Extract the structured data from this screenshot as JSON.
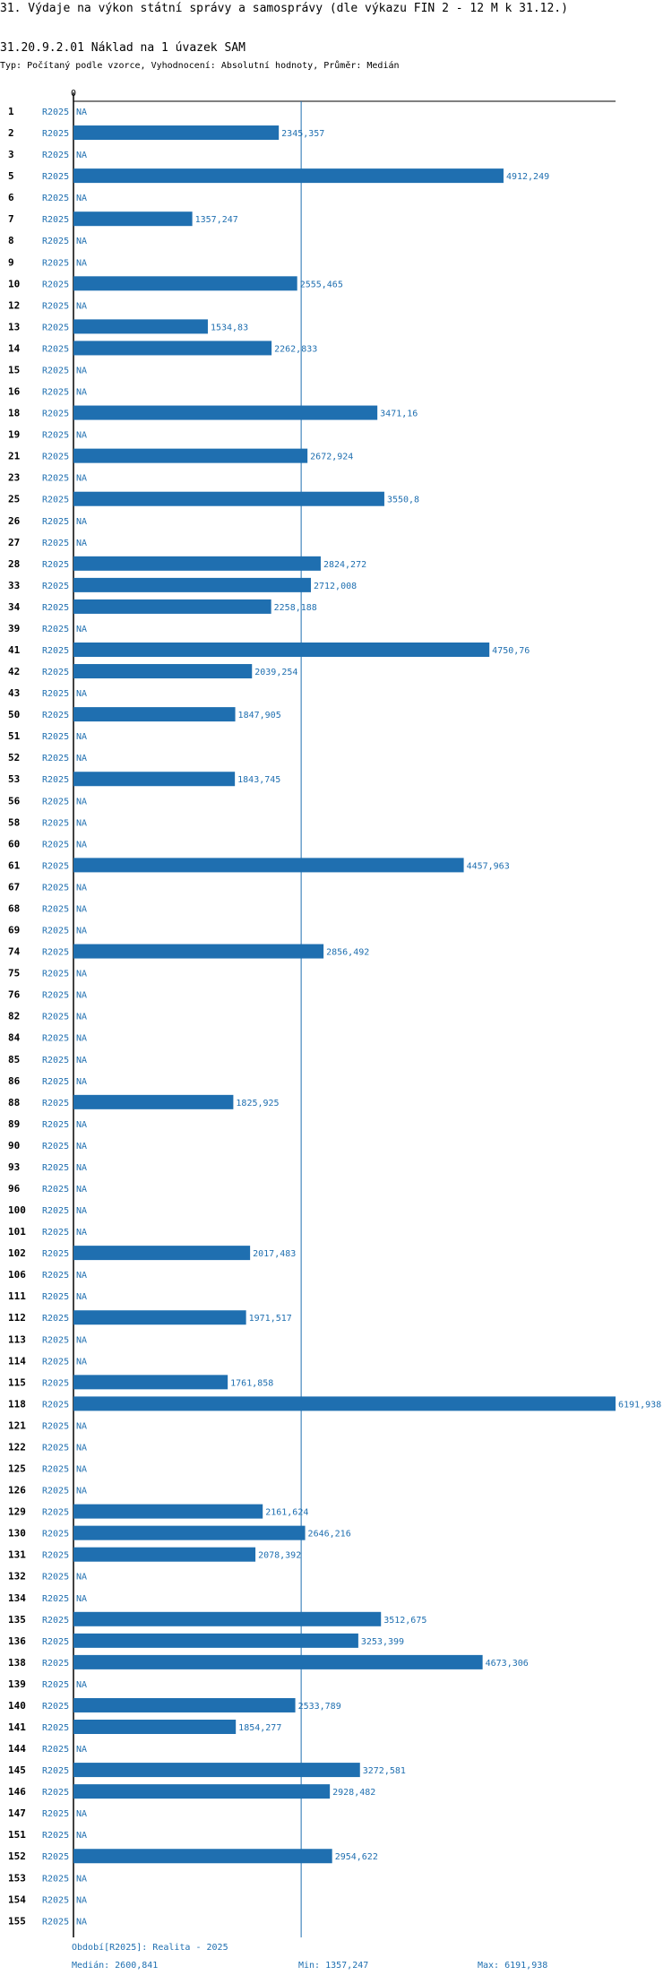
{
  "header": {
    "title": "31. Výdaje na výkon státní správy a samosprávy (dle výkazu FIN 2 - 12 M k 31.12.)",
    "subtitle": "31.20.9.2.01 Náklad na 1 úvazek SAM",
    "type_line": "Typ: Počítaný podle vzorce, Vyhodnocení: Absolutní hodnoty, Průměr: Medián"
  },
  "colors": {
    "bar": "#1f6fb0",
    "text": "#1f6fb0",
    "axis": "#000000"
  },
  "chart_data": {
    "type": "bar",
    "orientation": "horizontal",
    "series_label": "R2025",
    "na_label": "NA",
    "axis_zero_label": "0",
    "xlim": [
      0,
      6191.938
    ],
    "median": 2600.841,
    "categories": [
      "1",
      "2",
      "3",
      "5",
      "6",
      "7",
      "8",
      "9",
      "10",
      "12",
      "13",
      "14",
      "15",
      "16",
      "18",
      "19",
      "21",
      "23",
      "25",
      "26",
      "27",
      "28",
      "33",
      "34",
      "39",
      "41",
      "42",
      "43",
      "50",
      "51",
      "52",
      "53",
      "56",
      "58",
      "60",
      "61",
      "67",
      "68",
      "69",
      "74",
      "75",
      "76",
      "82",
      "84",
      "85",
      "86",
      "88",
      "89",
      "90",
      "93",
      "96",
      "100",
      "101",
      "102",
      "106",
      "111",
      "112",
      "113",
      "114",
      "115",
      "118",
      "121",
      "122",
      "125",
      "126",
      "129",
      "130",
      "131",
      "132",
      "134",
      "135",
      "136",
      "138",
      "139",
      "140",
      "141",
      "144",
      "145",
      "146",
      "147",
      "151",
      "152",
      "153",
      "154",
      "155"
    ],
    "values": [
      null,
      2345.357,
      null,
      4912.249,
      null,
      1357.247,
      null,
      null,
      2555.465,
      null,
      1534.83,
      2262.833,
      null,
      null,
      3471.16,
      null,
      2672.924,
      null,
      3550.8,
      null,
      null,
      2824.272,
      2712.008,
      2258.188,
      null,
      4750.76,
      2039.254,
      null,
      1847.905,
      null,
      null,
      1843.745,
      null,
      null,
      null,
      4457.963,
      null,
      null,
      null,
      2856.492,
      null,
      null,
      null,
      null,
      null,
      null,
      1825.925,
      null,
      null,
      null,
      null,
      null,
      null,
      2017.483,
      null,
      null,
      1971.517,
      null,
      null,
      1761.858,
      6191.938,
      null,
      null,
      null,
      null,
      2161.624,
      2646.216,
      2078.392,
      null,
      null,
      3512.675,
      3253.399,
      4673.306,
      null,
      2533.789,
      1854.277,
      null,
      3272.581,
      2928.482,
      null,
      null,
      2954.622,
      null,
      null,
      null
    ],
    "value_labels": [
      "NA",
      "2345,357",
      "NA",
      "4912,249",
      "NA",
      "1357,247",
      "NA",
      "NA",
      "2555,465",
      "NA",
      "1534,83",
      "2262,833",
      "NA",
      "NA",
      "3471,16",
      "NA",
      "2672,924",
      "NA",
      "3550,8",
      "NA",
      "NA",
      "2824,272",
      "2712,008",
      "2258,188",
      "NA",
      "4750,76",
      "2039,254",
      "NA",
      "1847,905",
      "NA",
      "NA",
      "1843,745",
      "NA",
      "NA",
      "NA",
      "4457,963",
      "NA",
      "NA",
      "NA",
      "2856,492",
      "NA",
      "NA",
      "NA",
      "NA",
      "NA",
      "NA",
      "1825,925",
      "NA",
      "NA",
      "NA",
      "NA",
      "NA",
      "NA",
      "2017,483",
      "NA",
      "NA",
      "1971,517",
      "NA",
      "NA",
      "1761,858",
      "6191,938",
      "NA",
      "NA",
      "NA",
      "NA",
      "2161,624",
      "2646,216",
      "2078,392",
      "NA",
      "NA",
      "3512,675",
      "3253,399",
      "4673,306",
      "NA",
      "2533,789",
      "1854,277",
      "NA",
      "3272,581",
      "2928,482",
      "NA",
      "NA",
      "2954,622",
      "NA",
      "NA",
      "NA"
    ]
  },
  "footer": {
    "period": "Období[R2025]: Realita - 2025",
    "median": "Medián: 2600,841",
    "min": "Min: 1357,247",
    "max": "Max: 6191,938"
  }
}
